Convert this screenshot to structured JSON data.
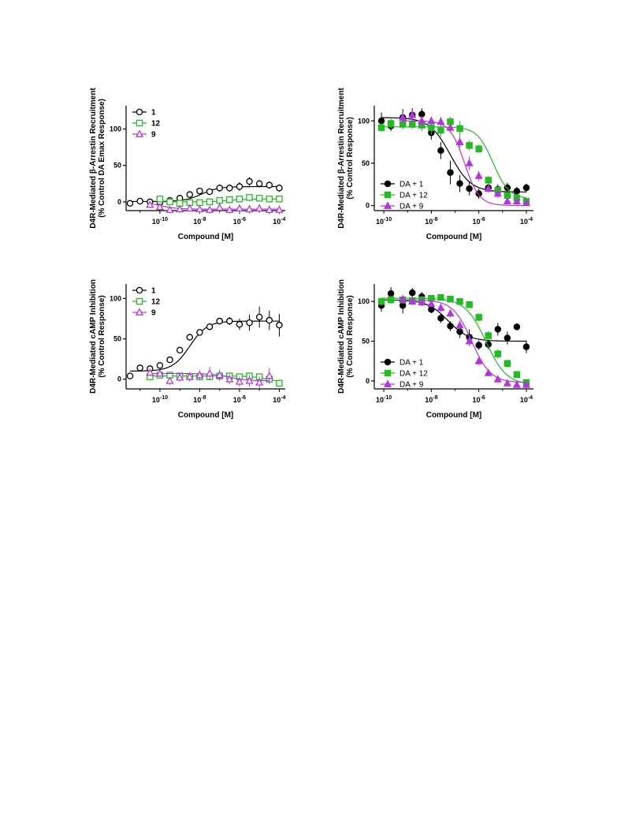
{
  "page": {
    "background": "#ffffff"
  },
  "colors": {
    "compound_1": "#000000",
    "compound_12": "#22bb22",
    "compound_9": "#b633e0"
  },
  "chart_data": [
    {
      "type": "scatter",
      "id": "A",
      "ylabel": [
        "D4R-Mediated β-Arrestin Recruitment",
        "(% Control DA Emax Response)"
      ],
      "xlabel": "Compound [M]",
      "x_scale": "log10",
      "xlim_log10": [
        -11.7,
        -3.7
      ],
      "ylim": [
        -12,
        132
      ],
      "yticks": [
        0,
        50,
        100
      ],
      "xtick_exponents": [
        -10,
        -8,
        -6,
        -4
      ],
      "legend_position": "top-left",
      "legend_bold": true,
      "series": [
        {
          "name": "1",
          "color": "#000000",
          "marker": "circle-open",
          "curve": [
            0.5,
            21,
            -7.9,
            1
          ],
          "x": [
            -11.5,
            -11,
            -10.5,
            -10,
            -9.5,
            -9,
            -8.5,
            -8,
            -7.5,
            -7,
            -6.5,
            -6,
            -5.5,
            -5,
            -4.5,
            -4
          ],
          "y": [
            -2,
            1,
            0,
            -1,
            2,
            5,
            10,
            15,
            14,
            19,
            19,
            21,
            28,
            25,
            23,
            19
          ],
          "err": [
            2,
            2,
            2,
            2,
            3,
            3,
            3,
            4,
            4,
            5,
            5,
            6,
            6,
            5,
            5,
            5
          ]
        },
        {
          "name": "12",
          "color": "#22bb22",
          "marker": "square-open",
          "curve": [
            0,
            4,
            -6.5,
            1
          ],
          "x": [
            -10,
            -9.5,
            -9,
            -8.5,
            -8,
            -7.5,
            -7,
            -6.5,
            -6,
            -5.5,
            -5,
            -4.5,
            -4
          ],
          "y": [
            4,
            0,
            -2,
            -1,
            -1,
            0,
            2,
            3,
            4,
            6,
            5,
            4,
            4
          ],
          "err": [
            3,
            2,
            2,
            2,
            2,
            3,
            3,
            3,
            3,
            3,
            3,
            3,
            3
          ]
        },
        {
          "name": "9",
          "color": "#b633e0",
          "marker": "triangle-open",
          "curve": [
            0,
            -10,
            -10,
            1
          ],
          "x": [
            -10.5,
            -10,
            -9.5,
            -9,
            -8.5,
            -8,
            -7.5,
            -7,
            -6.5,
            -6,
            -5.5,
            -5,
            -4.5,
            -4
          ],
          "y": [
            -4,
            -7,
            -11,
            -10,
            -9,
            -10,
            -11,
            -8,
            -11,
            -9,
            -10,
            -9,
            -11,
            -11
          ],
          "err": [
            3,
            4,
            4,
            4,
            4,
            5,
            5,
            5,
            5,
            6,
            6,
            6,
            6,
            6
          ]
        }
      ]
    },
    {
      "type": "scatter",
      "id": "B",
      "ylabel": [
        "D4R-Mediated β-Arrestin Recruitment",
        "(% Control Response)"
      ],
      "xlabel": "Compound [M]",
      "x_scale": "log10",
      "xlim_log10": [
        -10.4,
        -3.7
      ],
      "ylim": [
        -6,
        118
      ],
      "yticks": [
        0,
        50,
        100
      ],
      "xtick_exponents": [
        -10,
        -8,
        -6,
        -4
      ],
      "legend_position": "bottom-left",
      "legend_bold": false,
      "series": [
        {
          "name": "DA + 1",
          "color": "#000000",
          "marker": "circle-filled",
          "curve": [
            104,
            16,
            -7.2,
            1
          ],
          "x": [
            -10.1,
            -9.7,
            -9.2,
            -8.8,
            -8.4,
            -8.0,
            -7.6,
            -7.2,
            -6.8,
            -6.4,
            -6.0,
            -5.6,
            -5.2,
            -4.8,
            -4.4,
            -4.0
          ],
          "y": [
            100,
            94,
            104,
            107,
            108,
            86,
            65,
            39,
            26,
            20,
            14,
            21,
            19,
            21,
            17,
            21
          ],
          "err": [
            10,
            6,
            10,
            8,
            7,
            8,
            10,
            14,
            10,
            8,
            6,
            5,
            6,
            6,
            5,
            5
          ]
        },
        {
          "name": "DA + 12",
          "color": "#22bb22",
          "marker": "square-filled",
          "curve": [
            93,
            8,
            -5.4,
            1.3
          ],
          "x": [
            -10.1,
            -9.7,
            -9.2,
            -8.8,
            -8.4,
            -8.0,
            -7.6,
            -7.2,
            -6.8,
            -6.4,
            -6.0,
            -5.6,
            -5.2,
            -4.8,
            -4.4,
            -4.0
          ],
          "y": [
            92,
            97,
            96,
            96,
            95,
            92,
            89,
            99,
            91,
            71,
            67,
            30,
            18,
            12,
            9,
            5
          ],
          "err": [
            5,
            6,
            6,
            6,
            7,
            8,
            8,
            6,
            9,
            6,
            5,
            5,
            4,
            4,
            4,
            3
          ]
        },
        {
          "name": "DA + 9",
          "color": "#b633e0",
          "marker": "triangle-filled",
          "curve": [
            100,
            0,
            -6.6,
            1.4
          ],
          "x": [
            -9.2,
            -8.8,
            -8.4,
            -8.0,
            -7.6,
            -7.2,
            -6.8,
            -6.4,
            -6.0,
            -5.6,
            -5.2,
            -4.8,
            -4.4,
            -4.0
          ],
          "y": [
            104,
            107,
            100,
            100,
            99,
            92,
            75,
            50,
            35,
            20,
            14,
            5,
            5,
            3
          ],
          "err": [
            6,
            6,
            6,
            5,
            6,
            6,
            7,
            8,
            6,
            5,
            5,
            4,
            4,
            3
          ]
        }
      ]
    },
    {
      "type": "scatter",
      "id": "C",
      "ylabel": [
        "D4R-Mediated cAMP Inhibition",
        "(% Control Response)"
      ],
      "xlabel": "Compound [M]",
      "x_scale": "log10",
      "xlim_log10": [
        -11.7,
        -3.7
      ],
      "ylim": [
        -12,
        118
      ],
      "yticks": [
        0,
        50,
        100
      ],
      "xtick_exponents": [
        -10,
        -8,
        -6,
        -4
      ],
      "legend_position": "top-left",
      "legend_bold": true,
      "series": [
        {
          "name": "1",
          "color": "#000000",
          "marker": "circle-open",
          "curve": [
            10,
            72,
            -8.5,
            1
          ],
          "x": [
            -11.5,
            -11,
            -10.5,
            -10,
            -9.5,
            -9,
            -8.5,
            -8,
            -7.5,
            -7,
            -6.5,
            -6,
            -5.5,
            -5,
            -4.5,
            -4
          ],
          "y": [
            4,
            14,
            13,
            17,
            24,
            36,
            52,
            58,
            65,
            72,
            72,
            68,
            70,
            77,
            73,
            67
          ],
          "err": [
            2,
            2,
            2,
            3,
            3,
            4,
            4,
            4,
            4,
            4,
            5,
            7,
            10,
            13,
            12,
            14
          ]
        },
        {
          "name": "12",
          "color": "#22bb22",
          "marker": "square-open",
          "curve": [
            4,
            -4,
            -4.6,
            1
          ],
          "x": [
            -10.5,
            -10,
            -9.5,
            -9,
            -8.5,
            -8,
            -7.5,
            -7,
            -6.5,
            -6,
            -5.5,
            -5,
            -4.5,
            -4
          ],
          "y": [
            3,
            5,
            5,
            4,
            3,
            3,
            3,
            4,
            4,
            3,
            4,
            3,
            0,
            -5
          ],
          "err": [
            2,
            3,
            3,
            3,
            3,
            3,
            3,
            3,
            3,
            3,
            3,
            3,
            3,
            3
          ]
        },
        {
          "name": "9",
          "color": "#b633e0",
          "marker": "triangle-open",
          "curve": [
            7,
            -2,
            -6.5,
            1
          ],
          "x": [
            -10.5,
            -10,
            -9.5,
            -9,
            -8.5,
            -8,
            -7.5,
            -7,
            -6.5,
            -6,
            -5.5,
            -5,
            -4.5
          ],
          "y": [
            8,
            7,
            -2,
            2,
            3,
            5,
            7,
            5,
            0,
            -3,
            -2,
            -4,
            4
          ],
          "err": [
            3,
            4,
            5,
            5,
            6,
            6,
            8,
            7,
            6,
            6,
            7,
            7,
            10
          ]
        }
      ]
    },
    {
      "type": "scatter",
      "id": "D",
      "ylabel": [
        "D4R-Mediated cAMP Inhibition",
        "(% Control Response)"
      ],
      "xlabel": "Compound [M]",
      "x_scale": "log10",
      "xlim_log10": [
        -10.4,
        -3.7
      ],
      "ylim": [
        -10,
        122
      ],
      "yticks": [
        0,
        50,
        100
      ],
      "xtick_exponents": [
        -10,
        -8,
        -6,
        -4
      ],
      "legend_position": "bottom-left",
      "legend_bold": false,
      "series": [
        {
          "name": "DA + 1",
          "color": "#000000",
          "marker": "circle-filled",
          "curve": [
            102,
            50,
            -7.3,
            1
          ],
          "x": [
            -10.1,
            -9.7,
            -9.2,
            -8.8,
            -8.4,
            -8.0,
            -7.6,
            -7.2,
            -6.8,
            -6.4,
            -6.0,
            -5.6,
            -5.2,
            -4.8,
            -4.4,
            -4.0
          ],
          "y": [
            95,
            110,
            95,
            111,
            106,
            90,
            79,
            69,
            62,
            55,
            45,
            46,
            65,
            54,
            68,
            43
          ],
          "err": [
            8,
            8,
            10,
            6,
            6,
            5,
            6,
            6,
            8,
            10,
            6,
            6,
            8,
            8,
            4,
            8
          ]
        },
        {
          "name": "DA + 12",
          "color": "#22bb22",
          "marker": "square-filled",
          "curve": [
            104,
            -5,
            -5.7,
            1
          ],
          "x": [
            -10.1,
            -9.7,
            -9.2,
            -8.8,
            -8.4,
            -8.0,
            -7.6,
            -7.2,
            -6.8,
            -6.4,
            -6.0,
            -5.6,
            -5.2,
            -4.8,
            -4.4,
            -4.0
          ],
          "y": [
            100,
            102,
            102,
            101,
            102,
            104,
            105,
            103,
            100,
            96,
            80,
            57,
            34,
            22,
            8,
            -2
          ],
          "err": [
            5,
            5,
            5,
            5,
            5,
            4,
            4,
            4,
            4,
            4,
            5,
            6,
            6,
            5,
            4,
            4
          ]
        },
        {
          "name": "DA + 9",
          "color": "#b633e0",
          "marker": "triangle-filled",
          "curve": [
            102,
            -2,
            -6.3,
            1.1
          ],
          "x": [
            -9.2,
            -8.8,
            -8.4,
            -8.0,
            -7.6,
            -7.2,
            -6.8,
            -6.4,
            -6.0,
            -5.6,
            -5.2,
            -4.8,
            -4.4,
            -4.0
          ],
          "y": [
            103,
            100,
            99,
            97,
            92,
            85,
            70,
            50,
            25,
            10,
            2,
            -3,
            -5,
            -5
          ],
          "err": [
            5,
            5,
            5,
            4,
            5,
            5,
            6,
            6,
            5,
            4,
            3,
            3,
            3,
            3
          ]
        }
      ]
    }
  ]
}
